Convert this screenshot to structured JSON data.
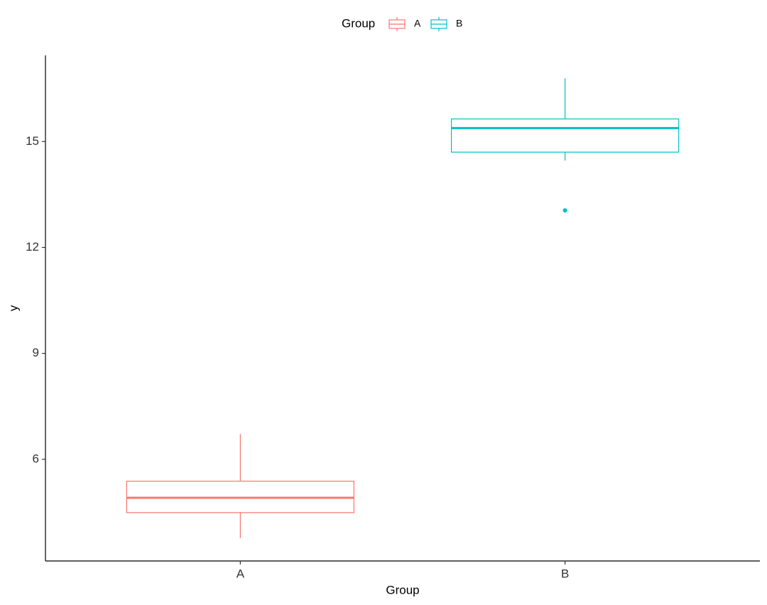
{
  "chart_data": {
    "type": "box",
    "x_label": "Group",
    "y_label": "y",
    "legend_title": "Group",
    "categories": [
      "A",
      "B"
    ],
    "series": [
      {
        "name": "A",
        "color": "#F8766D",
        "min": 3.77,
        "q1": 4.49,
        "median": 4.91,
        "q3": 5.38,
        "max": 6.72,
        "outliers": []
      },
      {
        "name": "B",
        "color": "#00BFC4",
        "min": 14.46,
        "q1": 14.7,
        "median": 15.38,
        "q3": 15.64,
        "max": 16.79,
        "outliers": [
          13.05
        ]
      }
    ],
    "ylim": [
      3.12,
      17.44
    ],
    "yticks": [
      6,
      9,
      12,
      15
    ],
    "grid": false,
    "legend_position": "top"
  }
}
